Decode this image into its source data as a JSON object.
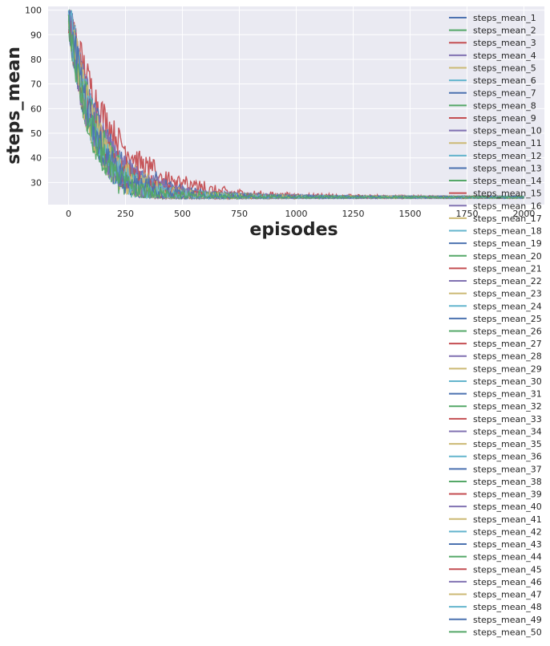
{
  "chart_data": {
    "type": "line",
    "title": "",
    "xlabel": "episodes",
    "ylabel": "steps_mean",
    "xlim": [
      -90,
      2090
    ],
    "ylim": [
      21,
      101.5
    ],
    "x_ticks": [
      0,
      250,
      500,
      750,
      1000,
      1250,
      1500,
      1750,
      2000
    ],
    "y_ticks": [
      30,
      40,
      50,
      60,
      70,
      80,
      90,
      100
    ],
    "x_range": [
      0,
      2000
    ],
    "start_value": 100,
    "final_value": 24,
    "grid": true,
    "background": "#eaeaf2",
    "legend_position": "right, extending below the axes",
    "palette": [
      "#4c72b0",
      "#55a868",
      "#c44e52",
      "#8172b2",
      "#ccb974",
      "#64b5cd"
    ],
    "series": [
      {
        "name": "steps_mean_1",
        "color": "#4c72b0",
        "converge_episode": 300,
        "noise": 9
      },
      {
        "name": "steps_mean_2",
        "color": "#55a868",
        "converge_episode": 320,
        "noise": 10
      },
      {
        "name": "steps_mean_3",
        "color": "#c44e52",
        "converge_episode": 560,
        "noise": 8
      },
      {
        "name": "steps_mean_4",
        "color": "#8172b2",
        "converge_episode": 350,
        "noise": 10
      },
      {
        "name": "steps_mean_5",
        "color": "#ccb974",
        "converge_episode": 380,
        "noise": 9
      },
      {
        "name": "steps_mean_6",
        "color": "#64b5cd",
        "converge_episode": 300,
        "noise": 10
      },
      {
        "name": "steps_mean_7",
        "color": "#4c72b0",
        "converge_episode": 330,
        "noise": 9
      },
      {
        "name": "steps_mean_8",
        "color": "#55a868",
        "converge_episode": 290,
        "noise": 10
      },
      {
        "name": "steps_mean_9",
        "color": "#c44e52",
        "converge_episode": 360,
        "noise": 8
      },
      {
        "name": "steps_mean_10",
        "color": "#8172b2",
        "converge_episode": 400,
        "noise": 9
      },
      {
        "name": "steps_mean_11",
        "color": "#ccb974",
        "converge_episode": 340,
        "noise": 10
      },
      {
        "name": "steps_mean_12",
        "color": "#64b5cd",
        "converge_episode": 310,
        "noise": 9
      },
      {
        "name": "steps_mean_13",
        "color": "#4c72b0",
        "converge_episode": 420,
        "noise": 9
      },
      {
        "name": "steps_mean_14",
        "color": "#55a868",
        "converge_episode": 300,
        "noise": 10
      },
      {
        "name": "steps_mean_15",
        "color": "#c44e52",
        "converge_episode": 330,
        "noise": 9
      },
      {
        "name": "steps_mean_16",
        "color": "#8172b2",
        "converge_episode": 370,
        "noise": 10
      },
      {
        "name": "steps_mean_17",
        "color": "#ccb974",
        "converge_episode": 350,
        "noise": 9
      },
      {
        "name": "steps_mean_18",
        "color": "#64b5cd",
        "converge_episode": 320,
        "noise": 10
      },
      {
        "name": "steps_mean_19",
        "color": "#4c72b0",
        "converge_episode": 340,
        "noise": 9
      },
      {
        "name": "steps_mean_20",
        "color": "#55a868",
        "converge_episode": 310,
        "noise": 10
      },
      {
        "name": "steps_mean_21",
        "color": "#c44e52",
        "converge_episode": 380,
        "noise": 9
      },
      {
        "name": "steps_mean_22",
        "color": "#8172b2",
        "converge_episode": 350,
        "noise": 10
      },
      {
        "name": "steps_mean_23",
        "color": "#ccb974",
        "converge_episode": 330,
        "noise": 9
      },
      {
        "name": "steps_mean_24",
        "color": "#64b5cd",
        "converge_episode": 300,
        "noise": 10
      },
      {
        "name": "steps_mean_25",
        "color": "#4c72b0",
        "converge_episode": 360,
        "noise": 9
      },
      {
        "name": "steps_mean_26",
        "color": "#55a868",
        "converge_episode": 320,
        "noise": 10
      },
      {
        "name": "steps_mean_27",
        "color": "#c44e52",
        "converge_episode": 340,
        "noise": 9
      },
      {
        "name": "steps_mean_28",
        "color": "#8172b2",
        "converge_episode": 390,
        "noise": 10
      },
      {
        "name": "steps_mean_29",
        "color": "#ccb974",
        "converge_episode": 310,
        "noise": 9
      },
      {
        "name": "steps_mean_30",
        "color": "#64b5cd",
        "converge_episode": 330,
        "noise": 10
      },
      {
        "name": "steps_mean_31",
        "color": "#4c72b0",
        "converge_episode": 350,
        "noise": 9
      },
      {
        "name": "steps_mean_32",
        "color": "#55a868",
        "converge_episode": 300,
        "noise": 10
      },
      {
        "name": "steps_mean_33",
        "color": "#c44e52",
        "converge_episode": 370,
        "noise": 9
      },
      {
        "name": "steps_mean_34",
        "color": "#8172b2",
        "converge_episode": 340,
        "noise": 10
      },
      {
        "name": "steps_mean_35",
        "color": "#ccb974",
        "converge_episode": 320,
        "noise": 9
      },
      {
        "name": "steps_mean_36",
        "color": "#64b5cd",
        "converge_episode": 360,
        "noise": 10
      },
      {
        "name": "steps_mean_37",
        "color": "#4c72b0",
        "converge_episode": 310,
        "noise": 9
      },
      {
        "name": "steps_mean_38",
        "color": "#55a868",
        "converge_episode": 350,
        "noise": 10
      },
      {
        "name": "steps_mean_39",
        "color": "#c44e52",
        "converge_episode": 330,
        "noise": 9
      },
      {
        "name": "steps_mean_40",
        "color": "#8172b2",
        "converge_episode": 380,
        "noise": 10
      },
      {
        "name": "steps_mean_41",
        "color": "#ccb974",
        "converge_episode": 300,
        "noise": 9
      },
      {
        "name": "steps_mean_42",
        "color": "#64b5cd",
        "converge_episode": 340,
        "noise": 10
      },
      {
        "name": "steps_mean_43",
        "color": "#4c72b0",
        "converge_episode": 320,
        "noise": 9
      },
      {
        "name": "steps_mean_44",
        "color": "#55a868",
        "converge_episode": 360,
        "noise": 10
      },
      {
        "name": "steps_mean_45",
        "color": "#c44e52",
        "converge_episode": 350,
        "noise": 9
      },
      {
        "name": "steps_mean_46",
        "color": "#8172b2",
        "converge_episode": 310,
        "noise": 10
      },
      {
        "name": "steps_mean_47",
        "color": "#ccb974",
        "converge_episode": 370,
        "noise": 9
      },
      {
        "name": "steps_mean_48",
        "color": "#64b5cd",
        "converge_episode": 330,
        "noise": 10
      },
      {
        "name": "steps_mean_49",
        "color": "#4c72b0",
        "converge_episode": 340,
        "noise": 9
      },
      {
        "name": "steps_mean_50",
        "color": "#55a868",
        "converge_episode": 300,
        "noise": 10
      }
    ]
  }
}
